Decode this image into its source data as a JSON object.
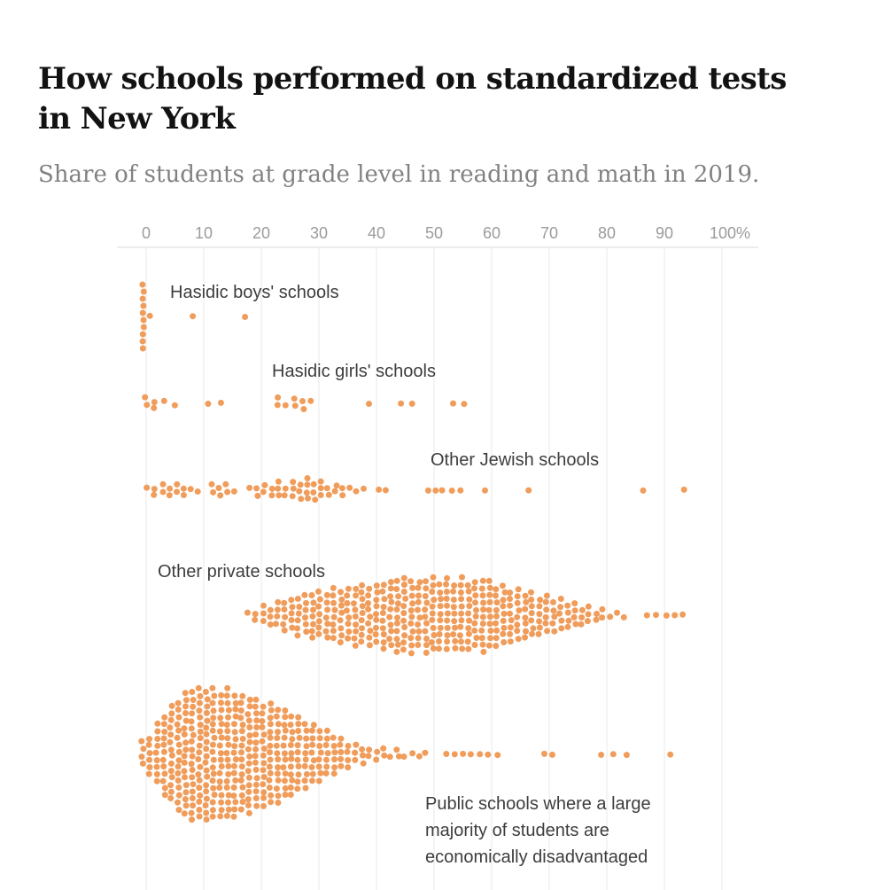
{
  "title": "How schools performed on standardized tests in New York",
  "subtitle": "Share of students at grade level in reading and math in 2019.",
  "colors": {
    "dot": "#f09d5c",
    "gridline": "#e9e9e9",
    "axis_line": "#d9d9d9",
    "tick_label": "#9b9b9b",
    "group_label": "#3d3d3d",
    "title": "#121212",
    "subtitle": "#818181"
  },
  "chart_data": {
    "type": "scatter",
    "subtype": "beeswarm-strip-plot",
    "unit": "percent of students at grade level",
    "x_axis": {
      "range": [
        0,
        100
      ],
      "tick_labels": [
        "0",
        "10",
        "20",
        "30",
        "40",
        "50",
        "60",
        "70",
        "80",
        "90",
        "100%"
      ],
      "grid": true,
      "position": "top"
    },
    "groups": [
      {
        "label": "Hasidic boys' schools",
        "stack": {
          "p": -0.5,
          "n": 10
        },
        "columns": [],
        "singles": [
          0.8,
          8,
          17.3
        ],
        "summary": "About 13 schools, nearly all at 0%; outliers near 8% and 17%."
      },
      {
        "label": "Hasidic girls' schools",
        "columns": [
          [
            0,
            2
          ],
          [
            1.5,
            2
          ],
          [
            3,
            1
          ],
          [
            4.9,
            1
          ],
          [
            22.7,
            2
          ],
          [
            24.2,
            1
          ],
          [
            25.7,
            2
          ],
          [
            27.2,
            2
          ],
          [
            28.7,
            1
          ]
        ],
        "singles": [
          10.8,
          13.1,
          38.7,
          44.3,
          46.2,
          53.4,
          55.1
        ],
        "summary": "About 21 schools ranging from 0% to ~55%, clustered near 0-5% and 23-30%."
      },
      {
        "label": "Other Jewish schools",
        "columns": [
          [
            0.3,
            1
          ],
          [
            1.5,
            2
          ],
          [
            2.8,
            2
          ],
          [
            4,
            2
          ],
          [
            5.2,
            2
          ],
          [
            6.5,
            2
          ],
          [
            7.7,
            1
          ],
          [
            9,
            1
          ],
          [
            11.5,
            2
          ],
          [
            12.7,
            2
          ],
          [
            14,
            2
          ],
          [
            15.2,
            1
          ],
          [
            18,
            1
          ],
          [
            19.2,
            2
          ],
          [
            20.5,
            2
          ],
          [
            21.7,
            2
          ],
          [
            23,
            3
          ],
          [
            24.2,
            2
          ],
          [
            25.4,
            3
          ],
          [
            26.7,
            3
          ],
          [
            27.9,
            4
          ],
          [
            29.2,
            3
          ],
          [
            30.4,
            3
          ],
          [
            31.6,
            2
          ],
          [
            32.9,
            2
          ],
          [
            34.1,
            2
          ],
          [
            35.3,
            1
          ],
          [
            36.6,
            1
          ],
          [
            37.8,
            1
          ]
        ],
        "singles": [
          40.3,
          41.5,
          48.9,
          50.2,
          51.5,
          53.1,
          54.6,
          58.8,
          66.4,
          86.3,
          93.4
        ],
        "summary": "About 68 schools mostly between 0% and 40%, outliers up to ~93%."
      },
      {
        "label": "Other private schools",
        "profile": {
          "start": 17.8,
          "step": 1.2308,
          "counts": [
            1,
            2,
            3,
            3,
            4,
            5,
            5,
            6,
            6,
            7,
            7,
            7,
            8,
            8,
            8,
            9,
            9,
            9,
            9,
            10,
            10,
            11,
            11,
            11,
            10,
            11,
            11,
            10,
            11,
            10,
            11,
            10,
            10,
            11,
            10,
            9,
            9,
            8,
            8,
            7,
            7,
            6,
            6,
            5,
            5,
            4,
            4,
            3,
            3,
            2,
            2,
            1,
            1,
            1
          ]
        },
        "columns": [],
        "singles": [
          86.9,
          88.5,
          90.3,
          91.8,
          93.2
        ],
        "summary": "Large swarm from ~18% to ~84%, densest near 45-60%, outliers to ~93%."
      },
      {
        "label": "Public schools where a large\nmajority of students are\neconomically disadvantaged",
        "profile": {
          "start": -0.6,
          "step": 1.2308,
          "counts": [
            4,
            6,
            9,
            12,
            14,
            16,
            18,
            19,
            19,
            19,
            19,
            18,
            19,
            18,
            17,
            17,
            16,
            15,
            15,
            14,
            13,
            12,
            11,
            10,
            9,
            8,
            7,
            6,
            5,
            4,
            3,
            3,
            2,
            2,
            2,
            1,
            2,
            1,
            1,
            1,
            1
          ]
        },
        "columns": [],
        "singles": [
          52,
          53.5,
          55,
          56.5,
          58,
          59.5,
          61,
          69,
          70.5,
          79,
          81,
          83.5,
          91
        ],
        "summary": "Largest swarm from 0% to ~50%, densest near 8-18%, sparse tail to ~91%."
      }
    ]
  }
}
